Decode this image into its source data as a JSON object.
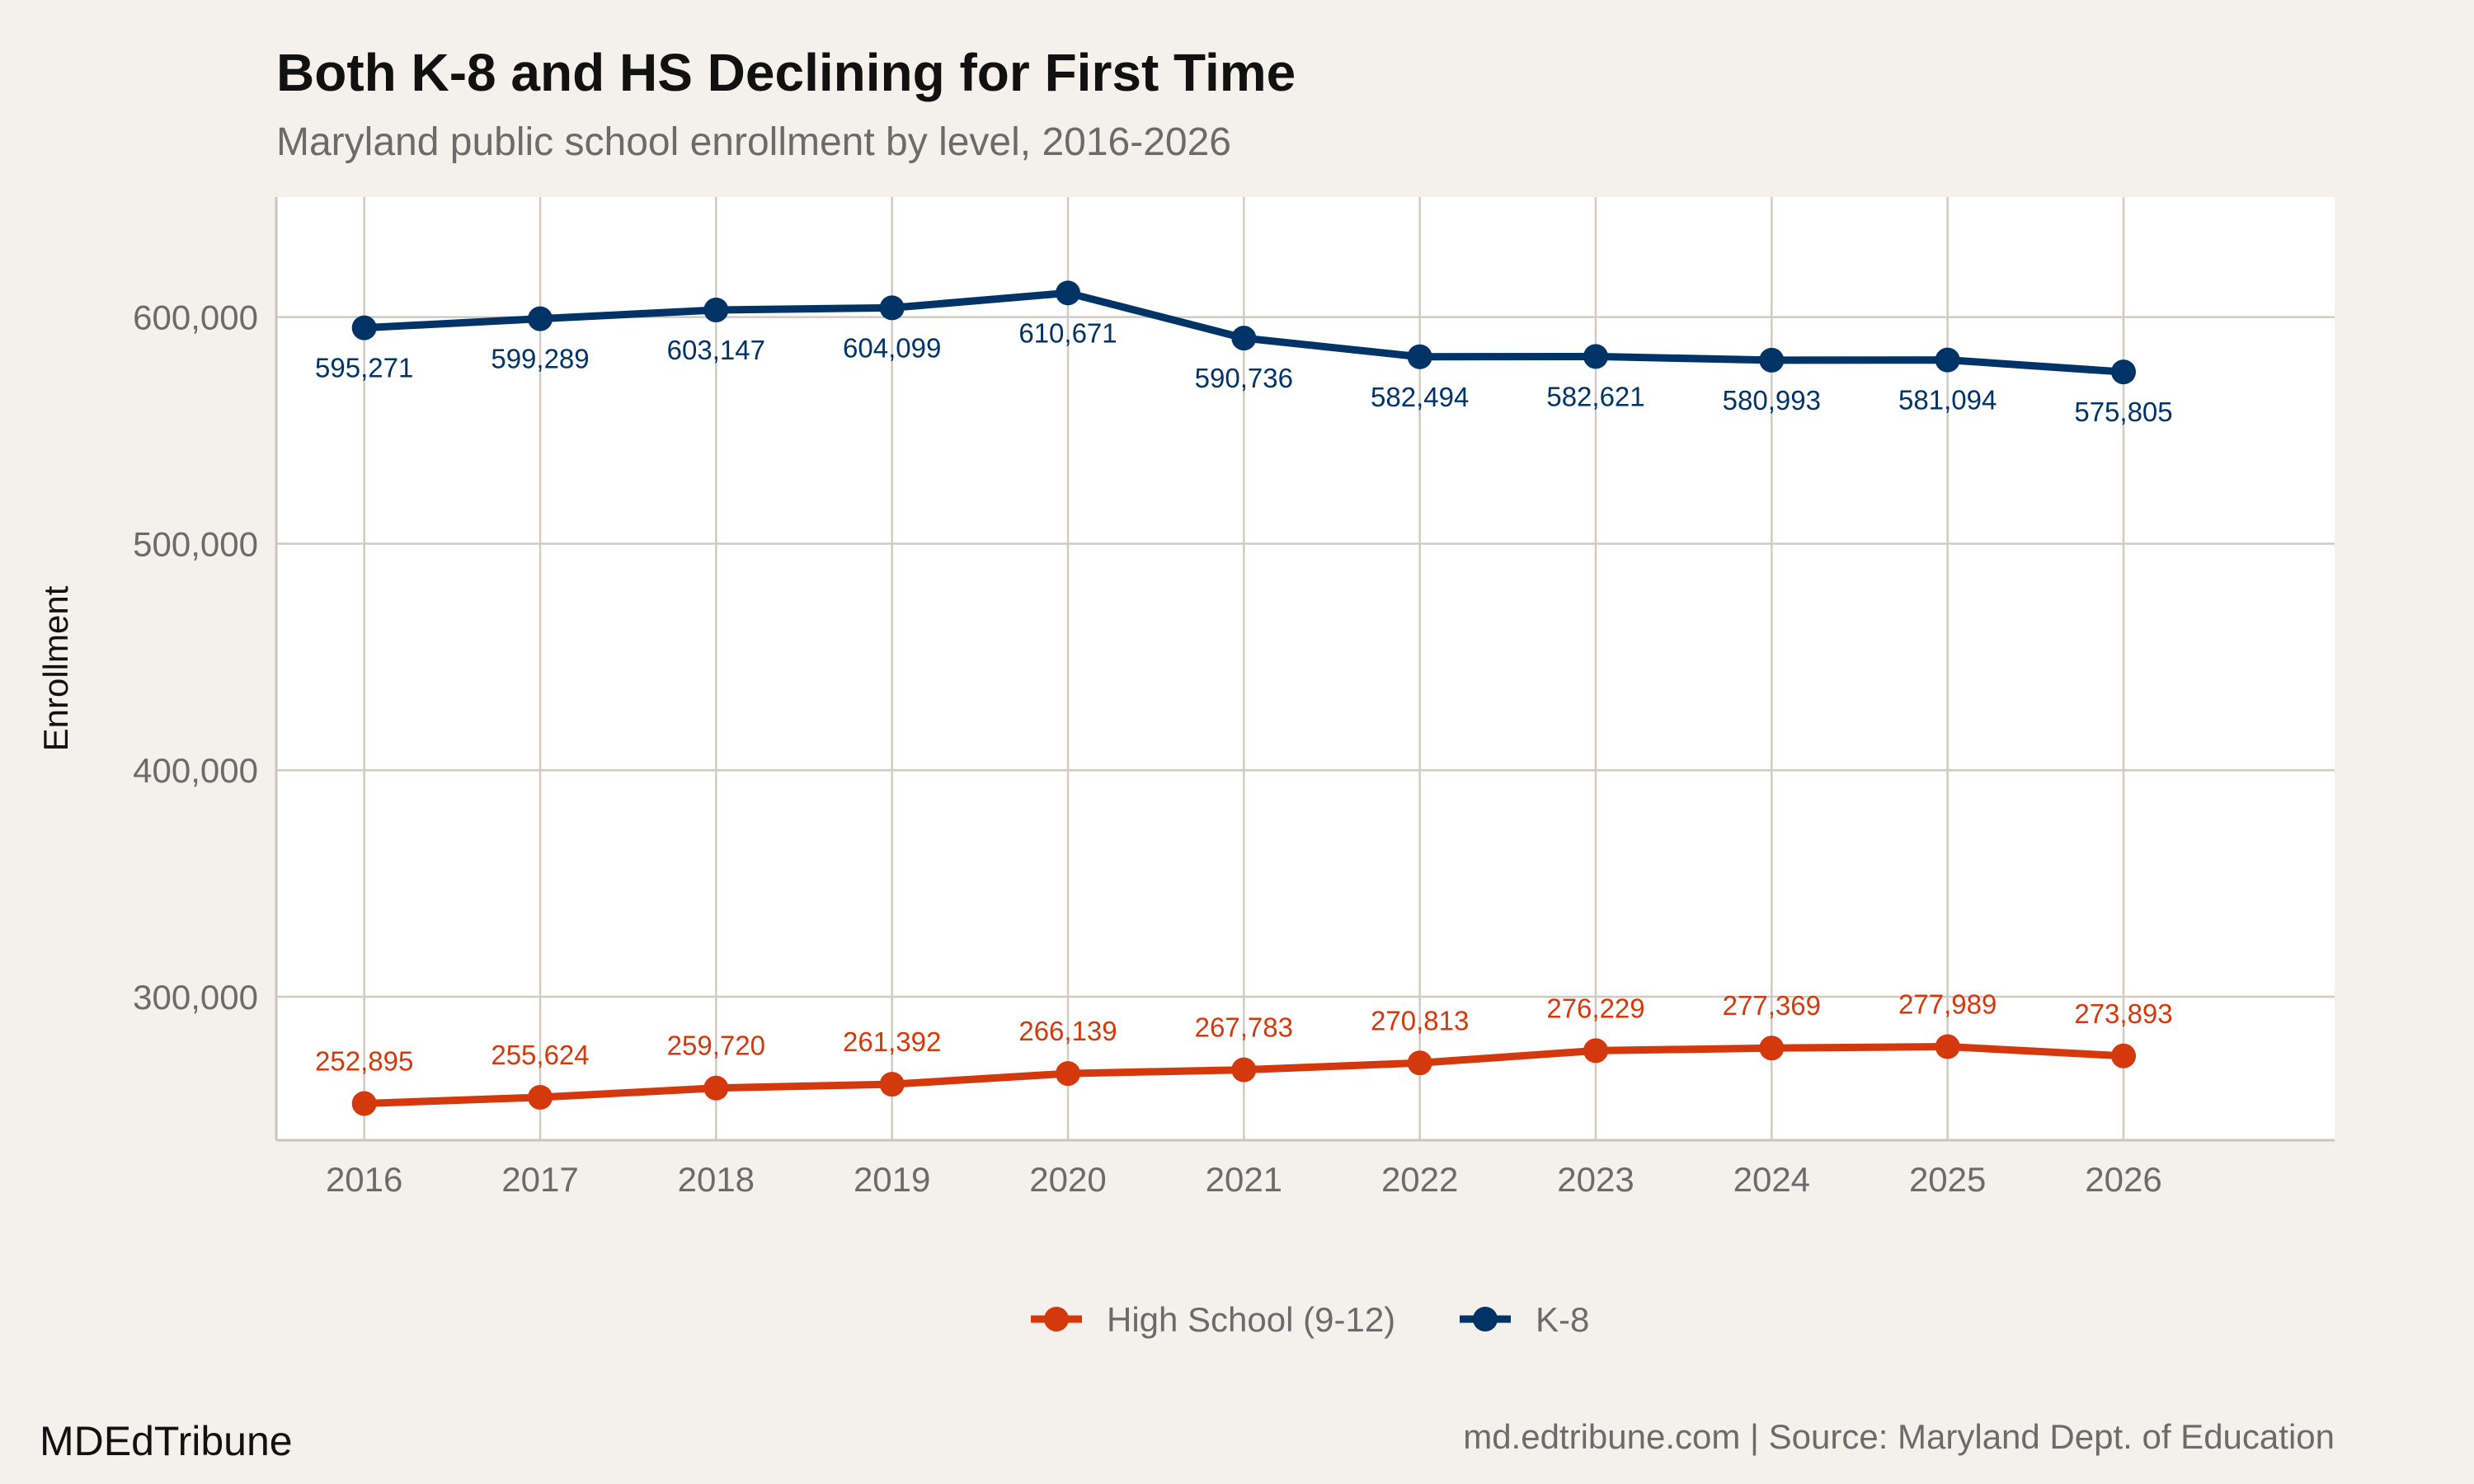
{
  "chart_data": {
    "type": "line",
    "title": "Both K-8 and HS Declining for First Time",
    "subtitle": "Maryland public school enrollment by level, 2016-2026",
    "xlabel": "",
    "ylabel": "Enrollment",
    "x": [
      2016,
      2017,
      2018,
      2019,
      2020,
      2021,
      2022,
      2023,
      2024,
      2025,
      2026
    ],
    "x_tick_labels": [
      "2016",
      "2017",
      "2018",
      "2019",
      "2020",
      "2021",
      "2022",
      "2023",
      "2024",
      "2025",
      "2026"
    ],
    "y_ticks": [
      300000,
      400000,
      500000,
      600000
    ],
    "y_tick_labels": [
      "300,000",
      "400,000",
      "500,000",
      "600,000"
    ],
    "xlim": [
      2015.5,
      2027.2
    ],
    "ylim": [
      236700,
      653000
    ],
    "grid": true,
    "legend_position": "bottom",
    "series": [
      {
        "name": "High School (9-12)",
        "color": "#d4380d",
        "values": [
          252895,
          255624,
          259720,
          261392,
          266139,
          267783,
          270813,
          276229,
          277369,
          277989,
          273893
        ],
        "labels": [
          "252,895",
          "255,624",
          "259,720",
          "261,392",
          "266,139",
          "267,783",
          "270,813",
          "276,229",
          "277,369",
          "277,989",
          "273,893"
        ],
        "label_position": "above"
      },
      {
        "name": "K-8",
        "color": "#003366",
        "values": [
          595271,
          599289,
          603147,
          604099,
          610671,
          590736,
          582494,
          582621,
          580993,
          581094,
          575805
        ],
        "labels": [
          "595,271",
          "599,289",
          "603,147",
          "604,099",
          "610,671",
          "590,736",
          "582,494",
          "582,621",
          "580,993",
          "581,094",
          "575,805"
        ],
        "label_position": "below"
      }
    ]
  },
  "footer": {
    "brand": "MDEdTribune",
    "source": "md.edtribune.com | Source: Maryland Dept. of Education"
  }
}
